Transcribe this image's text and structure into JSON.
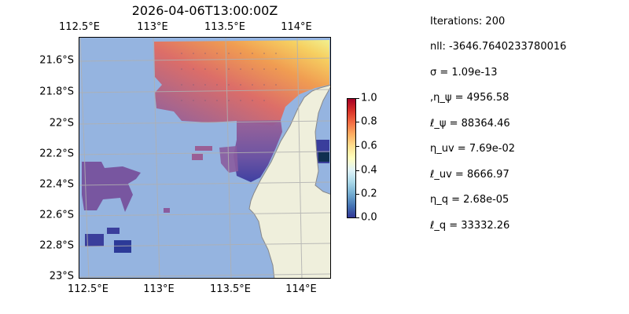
{
  "map": {
    "title": "2026-04-06T13:00:00Z",
    "top_ticks": [
      "112.5°E",
      "113°E",
      "113.5°E",
      "114°E"
    ],
    "bottom_ticks": [
      "112.5°E",
      "113°E",
      "113.5°E",
      "114°E"
    ],
    "left_ticks": [
      "21.6°S",
      "21.8°S",
      "22°S",
      "22.2°S",
      "22.4°S",
      "22.6°S",
      "22.8°S",
      "23°S"
    ],
    "colors": {
      "ocean": "#95b4e0",
      "land": "#efefdc",
      "coast": "#888888",
      "grid": "#b0b0b0"
    }
  },
  "colorbar": {
    "labels": [
      "1.0",
      "0.8",
      "0.6",
      "0.4",
      "0.2",
      "0.0"
    ],
    "colormap": "RdYlBu_r"
  },
  "stats": [
    "Iterations: 200",
    "nll: -3646.7640233780016",
    "σ = 1.09e-13",
    ",η_ψ = 4956.58",
    "ℓ_ψ = 88364.46",
    "η_uv = 7.69e-02",
    "ℓ_uv = 8666.97",
    "η_q = 2.68e-05",
    "ℓ_q = 33332.26"
  ]
}
